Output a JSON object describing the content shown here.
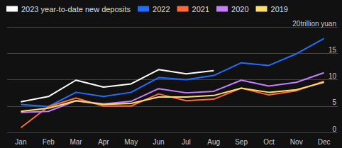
{
  "chart_data": {
    "type": "line",
    "categories": [
      "Jan",
      "Feb",
      "Mar",
      "Apr",
      "May",
      "Jun",
      "Jul",
      "Aug",
      "Sep",
      "Oct",
      "Nov",
      "Dec"
    ],
    "series": [
      {
        "name": "2023 year-to-date new deposits",
        "color": "#ffffff",
        "values": [
          5.8,
          6.8,
          9.9,
          8.6,
          9.2,
          11.9,
          11.1,
          11.7,
          null,
          null,
          null,
          null
        ]
      },
      {
        "name": "2022",
        "color": "#1f6fff",
        "values": [
          5.3,
          4.9,
          7.6,
          6.8,
          7.6,
          10.4,
          10.0,
          10.8,
          13.2,
          12.7,
          14.9,
          17.8
        ]
      },
      {
        "name": "2021",
        "color": "#ff6a3d",
        "values": [
          0.9,
          4.9,
          6.5,
          5.0,
          5.0,
          7.3,
          6.0,
          6.3,
          8.4,
          7.1,
          7.9,
          9.7
        ]
      },
      {
        "name": "2020",
        "color": "#c77dff",
        "values": [
          3.8,
          4.0,
          6.0,
          5.4,
          5.9,
          8.3,
          7.5,
          7.8,
          9.9,
          8.8,
          9.5,
          11.3
        ]
      },
      {
        "name": "2019",
        "color": "#ffe066",
        "values": [
          4.0,
          4.6,
          6.0,
          5.3,
          5.5,
          6.7,
          6.7,
          7.0,
          8.4,
          7.6,
          8.1,
          9.5
        ]
      }
    ],
    "ylim": [
      0,
      20
    ],
    "yticks": [
      0,
      5,
      10,
      15,
      {
        "value": 20,
        "label": "20trillion yuan"
      }
    ],
    "grid": true,
    "legend": "top"
  }
}
